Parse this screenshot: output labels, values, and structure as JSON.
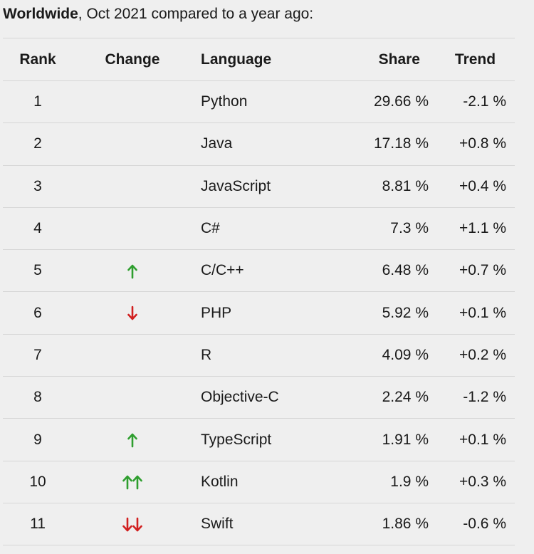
{
  "caption": {
    "bold": "Worldwide",
    "rest": ", Oct 2021 compared to a year ago:"
  },
  "headers": {
    "rank": "Rank",
    "change": "Change",
    "language": "Language",
    "share": "Share",
    "trend": "Trend"
  },
  "colors": {
    "up": "#2e9e2e",
    "down": "#d11f1f"
  },
  "rows": [
    {
      "rank": "1",
      "change": "",
      "language": "Python",
      "share": "29.66 %",
      "trend": "-2.1 %"
    },
    {
      "rank": "2",
      "change": "",
      "language": "Java",
      "share": "17.18 %",
      "trend": "+0.8 %"
    },
    {
      "rank": "3",
      "change": "",
      "language": "JavaScript",
      "share": "8.81 %",
      "trend": "+0.4 %"
    },
    {
      "rank": "4",
      "change": "",
      "language": "C#",
      "share": "7.3 %",
      "trend": "+1.1 %"
    },
    {
      "rank": "5",
      "change": "up",
      "language": "C/C++",
      "share": "6.48 %",
      "trend": "+0.7 %"
    },
    {
      "rank": "6",
      "change": "down",
      "language": "PHP",
      "share": "5.92 %",
      "trend": "+0.1 %"
    },
    {
      "rank": "7",
      "change": "",
      "language": "R",
      "share": "4.09 %",
      "trend": "+0.2 %"
    },
    {
      "rank": "8",
      "change": "",
      "language": "Objective-C",
      "share": "2.24 %",
      "trend": "-1.2 %"
    },
    {
      "rank": "9",
      "change": "up",
      "language": "TypeScript",
      "share": "1.91 %",
      "trend": "+0.1 %"
    },
    {
      "rank": "10",
      "change": "double-up",
      "language": "Kotlin",
      "share": "1.9 %",
      "trend": "+0.3 %"
    },
    {
      "rank": "11",
      "change": "double-down",
      "language": "Swift",
      "share": "1.86 %",
      "trend": "-0.6 %"
    }
  ]
}
